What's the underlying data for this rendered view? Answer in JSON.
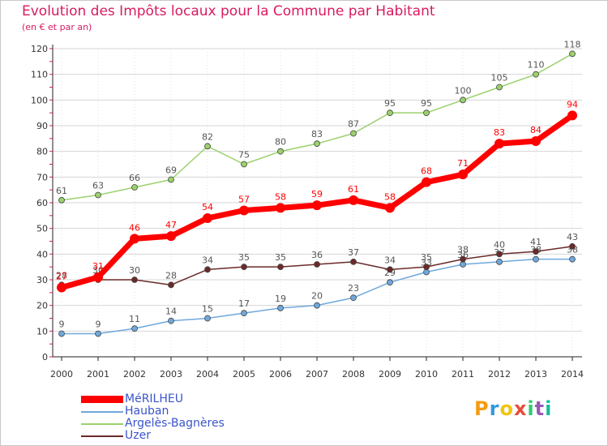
{
  "header": {
    "title": "Evolution des Impôts locaux pour la Commune par Habitant",
    "subtitle": "(en € et par an)"
  },
  "brand": {
    "letters": [
      "P",
      "r",
      "o",
      "x",
      "i",
      "t",
      "i"
    ]
  },
  "chart_data": {
    "type": "line",
    "title": "Evolution des Impôts locaux pour la Commune par Habitant",
    "subtitle": "(en € et par an)",
    "xlabel": "",
    "ylabel": "",
    "x": [
      "2000",
      "2001",
      "2002",
      "2003",
      "2004",
      "2005",
      "2006",
      "2007",
      "2008",
      "2009",
      "2010",
      "2011",
      "2012",
      "2013",
      "2014"
    ],
    "ylim": [
      0,
      120
    ],
    "yticks": [
      0,
      10,
      20,
      30,
      40,
      50,
      60,
      70,
      80,
      90,
      100,
      110,
      120
    ],
    "grid": "horizontal",
    "legend_position": "bottom-left",
    "series": [
      {
        "name": "MéRILHEU",
        "color": "#ff0000",
        "label_color": "#ff0000",
        "bold": true,
        "values": [
          27,
          31,
          46,
          47,
          54,
          57,
          58,
          59,
          61,
          58,
          68,
          71,
          83,
          84,
          94
        ]
      },
      {
        "name": "Hauban",
        "color": "#6fa8dc",
        "label_color": "#555555",
        "bold": false,
        "values": [
          9,
          9,
          11,
          14,
          15,
          17,
          19,
          20,
          23,
          29,
          33,
          36,
          37,
          38,
          38
        ]
      },
      {
        "name": "Argelès-Bagnères",
        "color": "#9bd16d",
        "label_color": "#555555",
        "bold": false,
        "values": [
          61,
          63,
          66,
          69,
          82,
          75,
          80,
          83,
          87,
          95,
          95,
          100,
          105,
          110,
          118
        ]
      },
      {
        "name": "Uzer",
        "color": "#6b2a2a",
        "label_color": "#555555",
        "bold": false,
        "values": [
          28,
          30,
          30,
          28,
          34,
          35,
          35,
          36,
          37,
          34,
          35,
          38,
          40,
          41,
          43
        ]
      }
    ]
  }
}
